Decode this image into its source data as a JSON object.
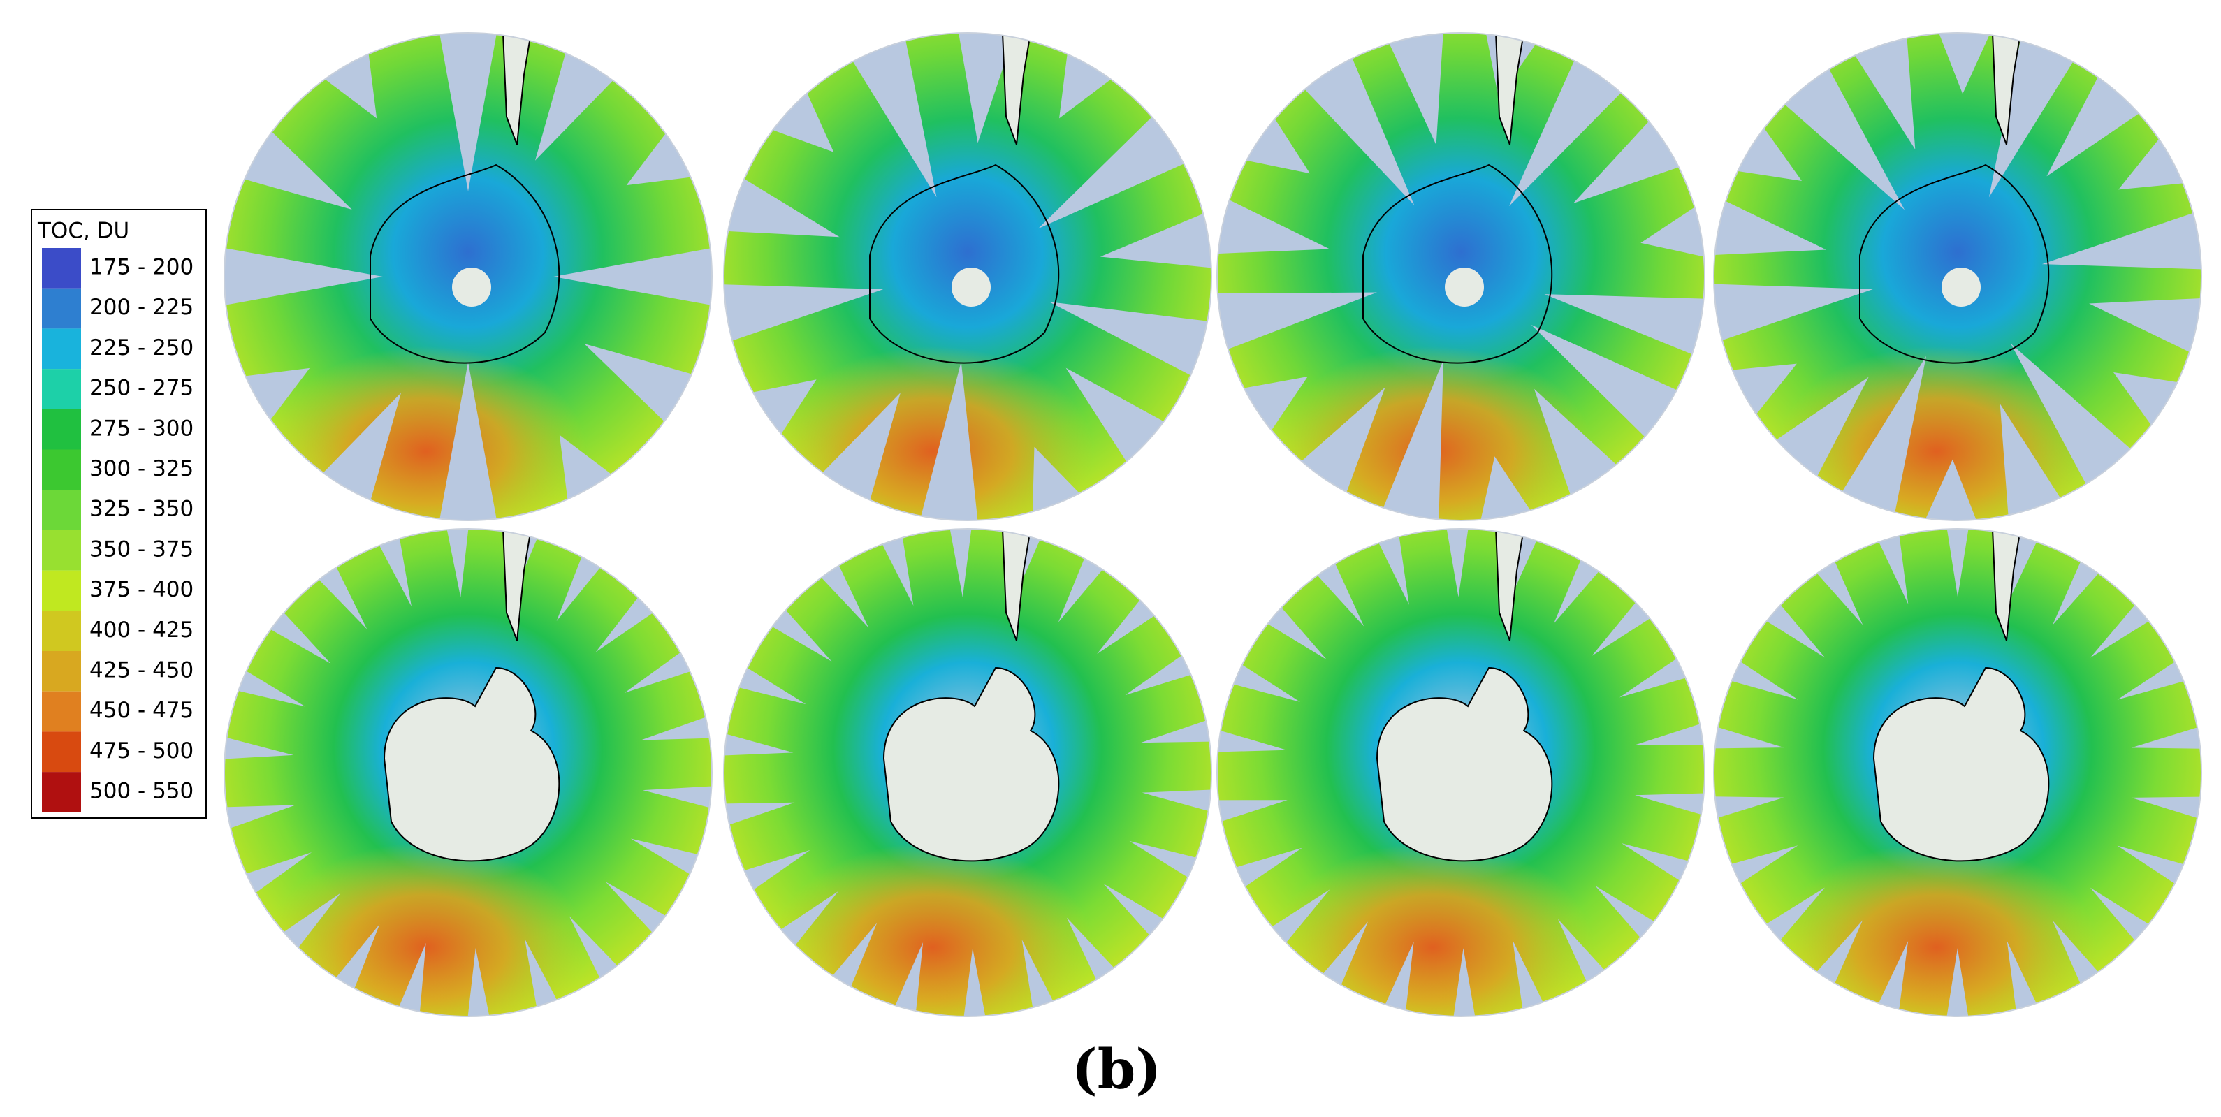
{
  "legend": {
    "title": "TOC, DU",
    "items": [
      {
        "label": "175 - 200",
        "color": "#3b4cc8"
      },
      {
        "label": "200 - 225",
        "color": "#2e7fd0"
      },
      {
        "label": "225 - 250",
        "color": "#19b3dc"
      },
      {
        "label": "250 - 275",
        "color": "#1dd0a8"
      },
      {
        "label": "275 - 300",
        "color": "#20c040"
      },
      {
        "label": "300 - 325",
        "color": "#3cc830"
      },
      {
        "label": "325 - 350",
        "color": "#6cd838"
      },
      {
        "label": "350 - 375",
        "color": "#98e030"
      },
      {
        "label": "375 - 400",
        "color": "#c0e820"
      },
      {
        "label": "400 - 425",
        "color": "#d0c820"
      },
      {
        "label": "425 - 450",
        "color": "#d8a820"
      },
      {
        "label": "450 - 475",
        "color": "#e08020"
      },
      {
        "label": "475 - 500",
        "color": "#d84a10"
      },
      {
        "label": "500 - 550",
        "color": "#b01010"
      }
    ]
  },
  "caption": "(b)"
}
